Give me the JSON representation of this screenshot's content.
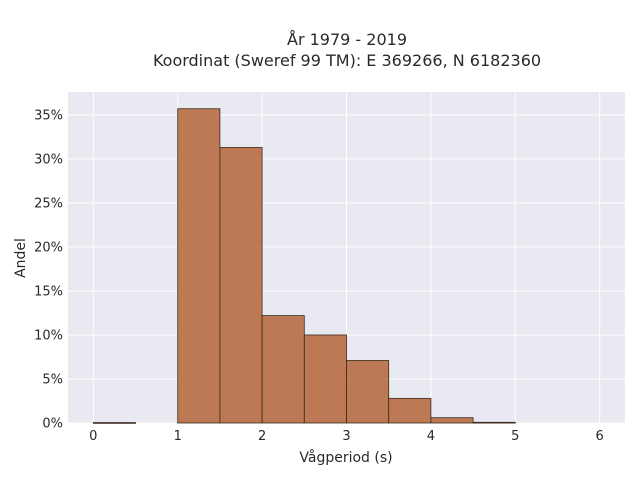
{
  "chart_data": {
    "type": "bar",
    "title_lines": [
      "År 1979 - 2019",
      "Koordinat (Sweref 99 TM): E 369266, N 6182360"
    ],
    "xlabel": "Vågperiod (s)",
    "ylabel": "Andel",
    "xlim": [
      -0.3,
      6.3
    ],
    "ylim": [
      0,
      37.6
    ],
    "x_ticks": [
      0,
      1,
      2,
      3,
      4,
      5,
      6
    ],
    "y_ticks": [
      0,
      5,
      10,
      15,
      20,
      25,
      30,
      35
    ],
    "y_tick_suffix": "%",
    "bin_width": 0.5,
    "bins": [
      {
        "start": 0.0,
        "value": 0.05
      },
      {
        "start": 0.5,
        "value": 0.0
      },
      {
        "start": 1.0,
        "value": 35.7
      },
      {
        "start": 1.5,
        "value": 31.3
      },
      {
        "start": 2.0,
        "value": 12.2
      },
      {
        "start": 2.5,
        "value": 10.0
      },
      {
        "start": 3.0,
        "value": 7.1
      },
      {
        "start": 3.5,
        "value": 2.8
      },
      {
        "start": 4.0,
        "value": 0.6
      },
      {
        "start": 4.5,
        "value": 0.08
      }
    ],
    "grid": true,
    "colors": {
      "bar": "#b86f45",
      "bar_edge": "#3b2a1e",
      "plot_bg": "#e9e9f2",
      "grid": "#ffffff"
    }
  }
}
